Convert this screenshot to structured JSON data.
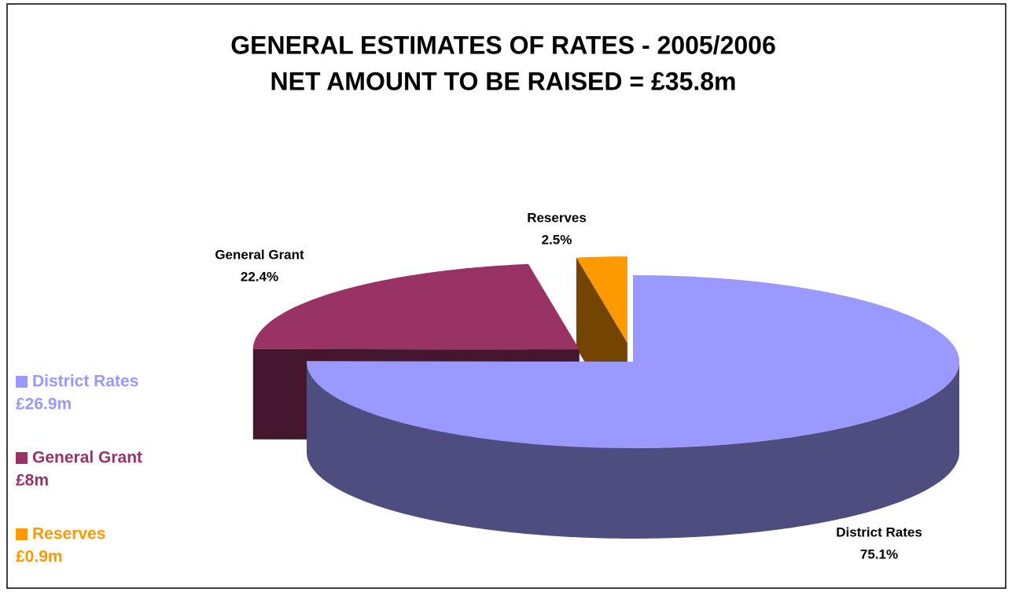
{
  "chart_data": {
    "type": "pie3d",
    "title": [
      "GENERAL ESTIMATES OF RATES - 2005/2006",
      "NET AMOUNT TO BE RAISED = £35.8m"
    ],
    "categories": [
      "District Rates",
      "General Grant",
      "Reserves"
    ],
    "values": [
      75.1,
      22.4,
      2.5
    ],
    "value_labels": [
      "75.1%",
      "22.4%",
      "2.5%"
    ],
    "amounts": [
      26.9,
      8,
      0.9
    ],
    "amount_labels": [
      "£26.9m",
      "£8m",
      "£0.9m"
    ],
    "colors": [
      "#9999ff",
      "#993366",
      "#ff9900"
    ],
    "legend": "left"
  }
}
